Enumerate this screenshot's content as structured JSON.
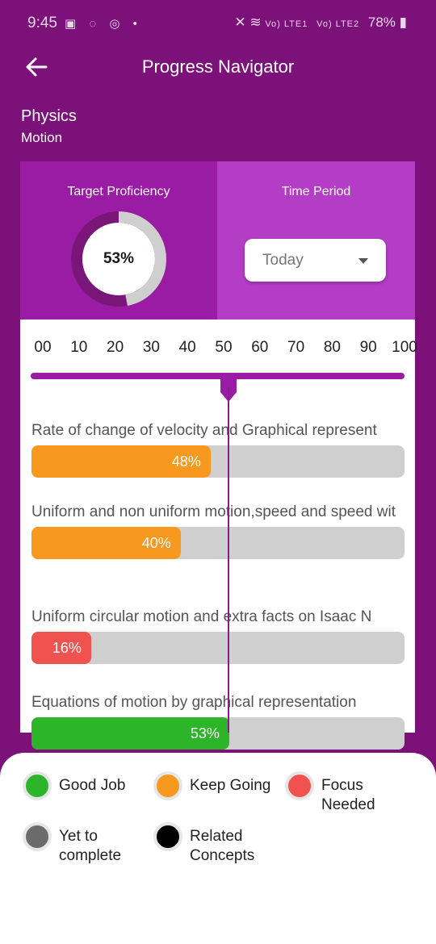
{
  "status_bar": {
    "time": "9:45",
    "battery": "78%",
    "signal_1": "Vo) LTE1",
    "signal_2": "Vo) LTE2"
  },
  "header": {
    "title": "Progress Navigator"
  },
  "subject": "Physics",
  "chapter": "Motion",
  "target_proficiency": {
    "label": "Target Proficiency",
    "value_label": "53%",
    "value": 53
  },
  "time_period": {
    "label": "Time Period",
    "selected": "Today"
  },
  "scale": [
    "00",
    "10",
    "20",
    "30",
    "40",
    "50",
    "60",
    "70",
    "80",
    "90",
    "100"
  ],
  "marker_value": 53,
  "topics": [
    {
      "name": "Rate of change of velocity and Graphical represent",
      "percent_label": "48%",
      "percent": 48,
      "status": "keep-going"
    },
    {
      "name": "Uniform and non uniform motion,speed and speed wit",
      "percent_label": "40%",
      "percent": 40,
      "status": "keep-going"
    },
    {
      "name": "Uniform circular motion and extra facts on Isaac N",
      "percent_label": "16%",
      "percent": 16,
      "status": "focus-needed"
    },
    {
      "name": "Equations of motion by graphical representation",
      "percent_label": "53%",
      "percent": 53,
      "status": "good-job"
    }
  ],
  "legend": [
    {
      "label": "Good Job",
      "color": "#2db52a"
    },
    {
      "label": "Keep Going",
      "color": "#f7981f"
    },
    {
      "label": "Focus Needed",
      "color": "#f0534f"
    },
    {
      "label": "Yet to complete",
      "color": "#6b6b6b"
    },
    {
      "label": "Related Concepts",
      "color": "#000000"
    }
  ],
  "colors": {
    "background": "#7b1179",
    "panel_left": "#9a1ca5",
    "panel_right": "#b43dc6",
    "track": "#cfcfcf"
  }
}
